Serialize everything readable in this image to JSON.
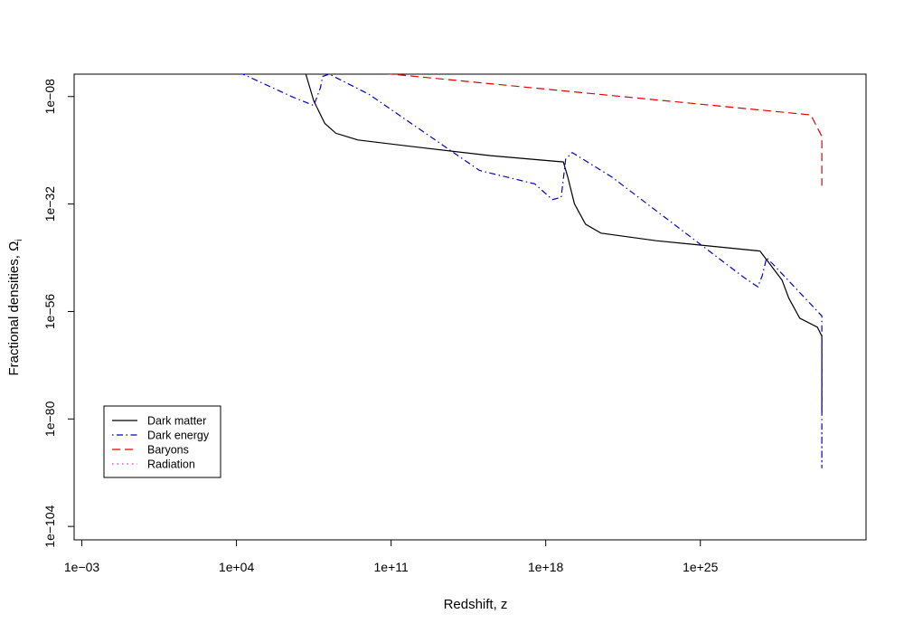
{
  "chart_data": {
    "type": "line",
    "title": "",
    "xlabel": "Redshift, z",
    "ylabel": "Fractional densities, Ω",
    "ylabel_subscript": "i",
    "x_scale": "log10",
    "y_scale": "log10",
    "xlim_log10": [
      -3.35,
      32.5
    ],
    "ylim_log10": [
      -107,
      -3
    ],
    "x_ticks": [
      {
        "log10": -3,
        "label": "1e−03"
      },
      {
        "log10": 4,
        "label": "1e+04"
      },
      {
        "log10": 11,
        "label": "1e+11"
      },
      {
        "log10": 18,
        "label": "1e+18"
      },
      {
        "log10": 25,
        "label": "1e+25"
      }
    ],
    "y_ticks": [
      {
        "log10": -8,
        "label": "1e−08"
      },
      {
        "log10": -32,
        "label": "1e−32"
      },
      {
        "log10": -56,
        "label": "1e−56"
      },
      {
        "log10": -80,
        "label": "1e−80"
      },
      {
        "log10": -104,
        "label": "1e−104"
      }
    ],
    "legend_position": "bottom-left",
    "series": [
      {
        "name": "Dark matter",
        "color": "#000000",
        "dash": "solid",
        "points_log10": [
          [
            -3,
            -0.56
          ],
          [
            0,
            -0.45
          ],
          [
            1.5,
            -0.3
          ],
          [
            4.0,
            -0.2
          ],
          [
            7.0,
            -0.6
          ],
          [
            7.05,
            -1.5
          ],
          [
            7.2,
            -4
          ],
          [
            7.5,
            -9
          ],
          [
            8.0,
            -14
          ],
          [
            8.5,
            -16.2
          ],
          [
            9.5,
            -17.7
          ],
          [
            12.0,
            -19.2
          ],
          [
            15.5,
            -21.2
          ],
          [
            18.8,
            -22.6
          ],
          [
            19.0,
            -26
          ],
          [
            19.3,
            -32
          ],
          [
            19.8,
            -36.5
          ],
          [
            20.5,
            -38.5
          ],
          [
            23.0,
            -40.2
          ],
          [
            27.7,
            -42.5
          ],
          [
            28.7,
            -49
          ],
          [
            29.0,
            -53
          ],
          [
            29.5,
            -57.5
          ],
          [
            30.3,
            -59.5
          ],
          [
            33.0,
            -61.5
          ],
          [
            45.0,
            -68
          ],
          [
            63.0,
            -78.5
          ]
        ]
      },
      {
        "name": "Dark energy",
        "color": "#0000cc",
        "dash": "dash-dot",
        "points_log10": [
          [
            -3,
            -0.35
          ],
          [
            1.5,
            -0.35
          ],
          [
            3.5,
            -1.2
          ],
          [
            6.5,
            -8
          ],
          [
            7.5,
            -10
          ],
          [
            7.8,
            -6
          ],
          [
            7.9,
            -3.5
          ],
          [
            8.2,
            -3
          ],
          [
            10.0,
            -7.5
          ],
          [
            15.0,
            -24.5
          ],
          [
            17.5,
            -27.5
          ],
          [
            18.3,
            -31
          ],
          [
            18.7,
            -30.5
          ],
          [
            18.9,
            -22
          ],
          [
            19.2,
            -20.5
          ],
          [
            21.0,
            -26
          ],
          [
            27.0,
            -48.5
          ],
          [
            27.6,
            -50.5
          ],
          [
            27.8,
            -48
          ],
          [
            28.0,
            -44
          ],
          [
            28.3,
            -45.5
          ],
          [
            32.0,
            -57
          ],
          [
            40.0,
            -75.5
          ],
          [
            44.0,
            -82.5
          ],
          [
            50.0,
            -86.5
          ],
          [
            58.0,
            -91
          ],
          [
            62.0,
            -87.5
          ],
          [
            62.5,
            -83
          ],
          [
            63.0,
            -81
          ]
        ]
      },
      {
        "name": "Baryons",
        "color": "#e00000",
        "dash": "dashed",
        "points_log10": [
          [
            -3,
            -1
          ],
          [
            0,
            -0.9
          ],
          [
            3,
            -0.7
          ],
          [
            6.0,
            -0.7
          ],
          [
            7.0,
            -1.0
          ],
          [
            10.0,
            -2.5
          ],
          [
            20.0,
            -7.3
          ],
          [
            30.0,
            -12.1
          ],
          [
            40.0,
            -16.9
          ],
          [
            50.0,
            -21.7
          ],
          [
            63.0,
            -27.9
          ]
        ]
      },
      {
        "name": "Radiation",
        "color": "#cc33cc",
        "dash": "dotted",
        "points_log10": [
          [
            -3,
            -1.9
          ],
          [
            1.0,
            -1.9
          ],
          [
            3.0,
            -0.9
          ],
          [
            5.0,
            -0.4
          ],
          [
            63.0,
            -0.3
          ]
        ]
      }
    ]
  }
}
